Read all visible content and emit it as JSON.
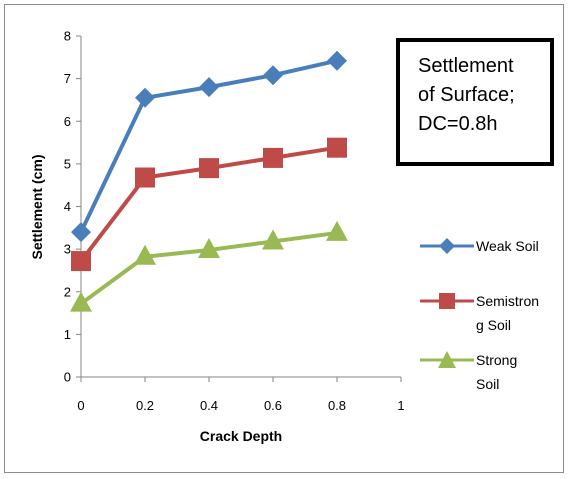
{
  "chart_data": {
    "type": "line",
    "xlabel": "Crack Depth",
    "ylabel": "Settlement (cm)",
    "xlim": [
      0,
      1
    ],
    "ylim": [
      0,
      8
    ],
    "x_ticks": [
      "0",
      "0.2",
      "0.4",
      "0.6",
      "0.8",
      "1"
    ],
    "y_ticks": [
      "0",
      "1",
      "2",
      "3",
      "4",
      "5",
      "6",
      "7",
      "8"
    ],
    "grid": false,
    "legend_position": "right",
    "annotation_lines": [
      "Settlement",
      "of Surface;",
      "DC=0.8h"
    ],
    "x": [
      0,
      0.2,
      0.4,
      0.6,
      0.8
    ],
    "series": [
      {
        "name_lines": [
          "Weak Soil"
        ],
        "values": [
          3.4,
          6.55,
          6.8,
          7.08,
          7.42
        ],
        "color": "#4a7ebb",
        "marker": "diamond"
      },
      {
        "name_lines": [
          "Semistron",
          "g Soil"
        ],
        "values": [
          2.72,
          4.68,
          4.9,
          5.14,
          5.38
        ],
        "color": "#be4b48",
        "marker": "square"
      },
      {
        "name_lines": [
          "Strong",
          "Soil"
        ],
        "values": [
          1.72,
          2.82,
          2.98,
          3.18,
          3.38
        ],
        "color": "#98b954",
        "marker": "triangle"
      }
    ]
  }
}
